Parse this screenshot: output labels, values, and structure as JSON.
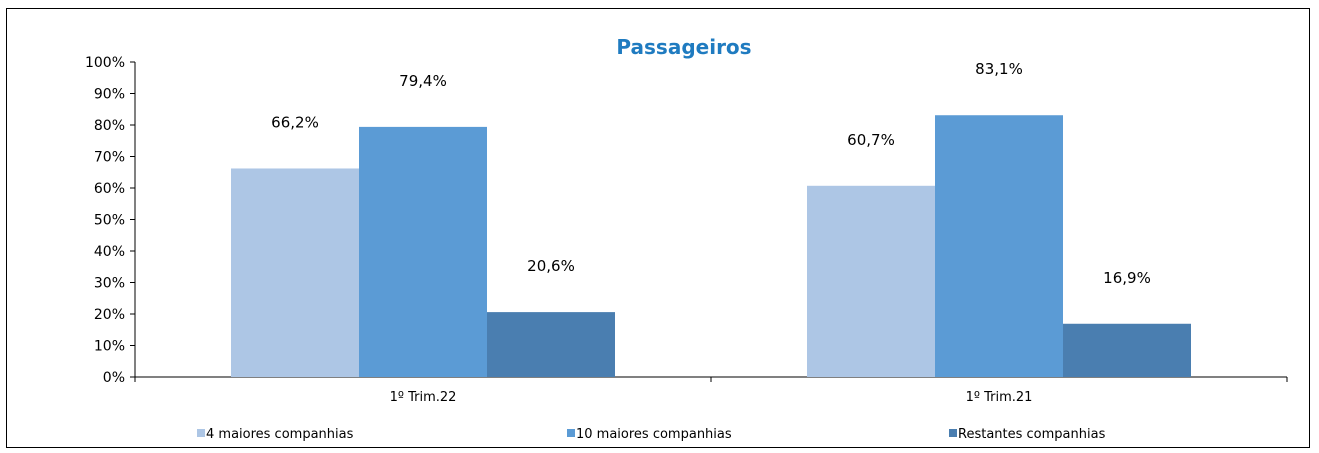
{
  "chart_data": {
    "type": "bar",
    "title": "Passageiros",
    "categories": [
      "1º Trim.22",
      "1º Trim.21"
    ],
    "series": [
      {
        "name": "4 maiores companhias",
        "values": [
          66.2,
          60.7
        ],
        "labels": [
          "66,2%",
          "60,7%"
        ],
        "color": "#adc6e5"
      },
      {
        "name": "10 maiores companhias",
        "values": [
          79.4,
          83.1
        ],
        "labels": [
          "79,4%",
          "83,1%"
        ],
        "color": "#5b9bd5"
      },
      {
        "name": "Restantes companhias",
        "values": [
          20.6,
          16.9
        ],
        "labels": [
          "20,6%",
          "16,9%"
        ],
        "color": "#4a7eb0"
      }
    ],
    "y_ticks": [
      "0%",
      "10%",
      "20%",
      "30%",
      "40%",
      "50%",
      "60%",
      "70%",
      "80%",
      "90%",
      "100%"
    ],
    "ylim": [
      0,
      100
    ],
    "grid": false,
    "legend_position": "bottom"
  }
}
